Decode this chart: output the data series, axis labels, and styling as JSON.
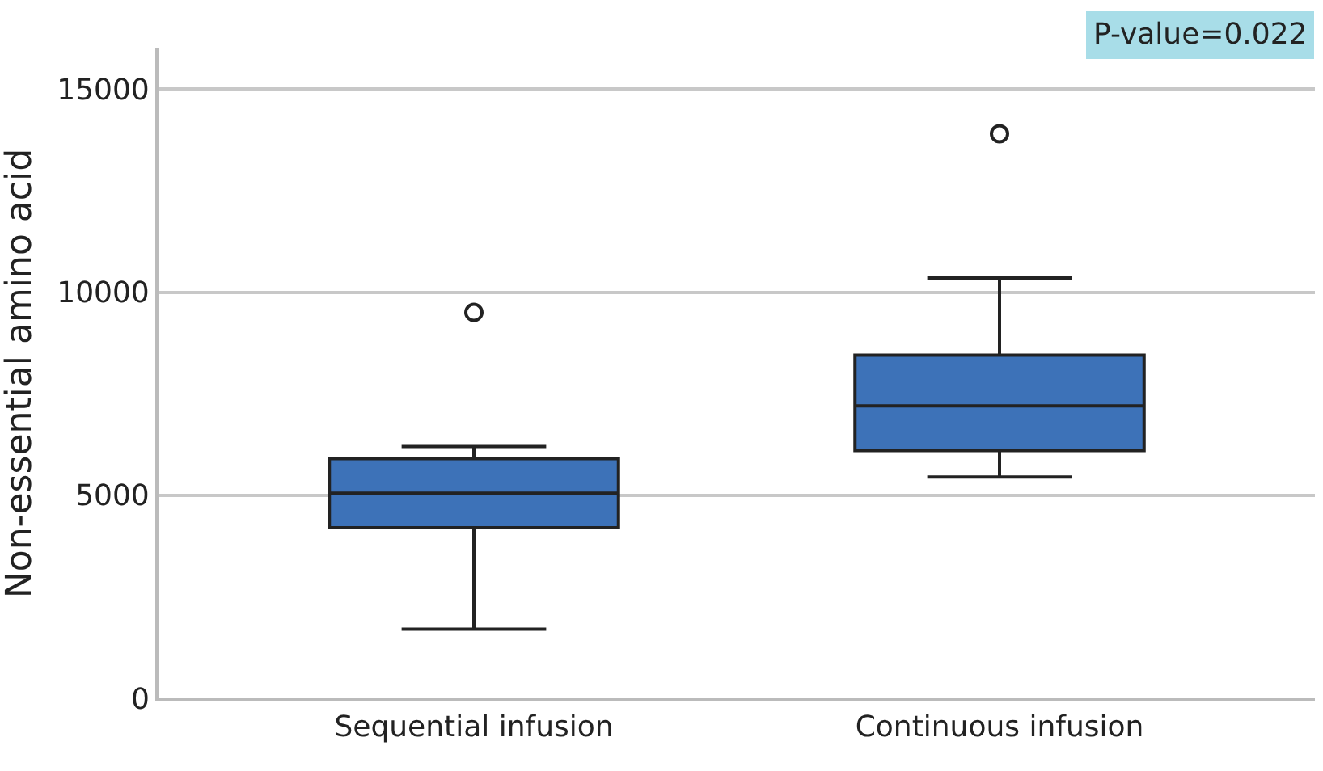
{
  "chart_data": {
    "type": "box",
    "ylabel": "Non-essential amino acid",
    "categories": [
      "Sequential infusion",
      "Continuous infusion"
    ],
    "boxes": [
      {
        "low": 1700,
        "q1": 4200,
        "median": 5050,
        "q3": 5900,
        "high": 6200,
        "outliers": [
          9500
        ]
      },
      {
        "low": 5450,
        "q1": 6100,
        "median": 7200,
        "q3": 8450,
        "high": 10350,
        "outliers": [
          13900
        ]
      }
    ],
    "color": "#3d72b8",
    "ylim": [
      0,
      16000
    ],
    "yticks": [
      0,
      5000,
      10000,
      15000
    ],
    "grid": "y",
    "annotations": [
      "P-value=0.022"
    ]
  }
}
